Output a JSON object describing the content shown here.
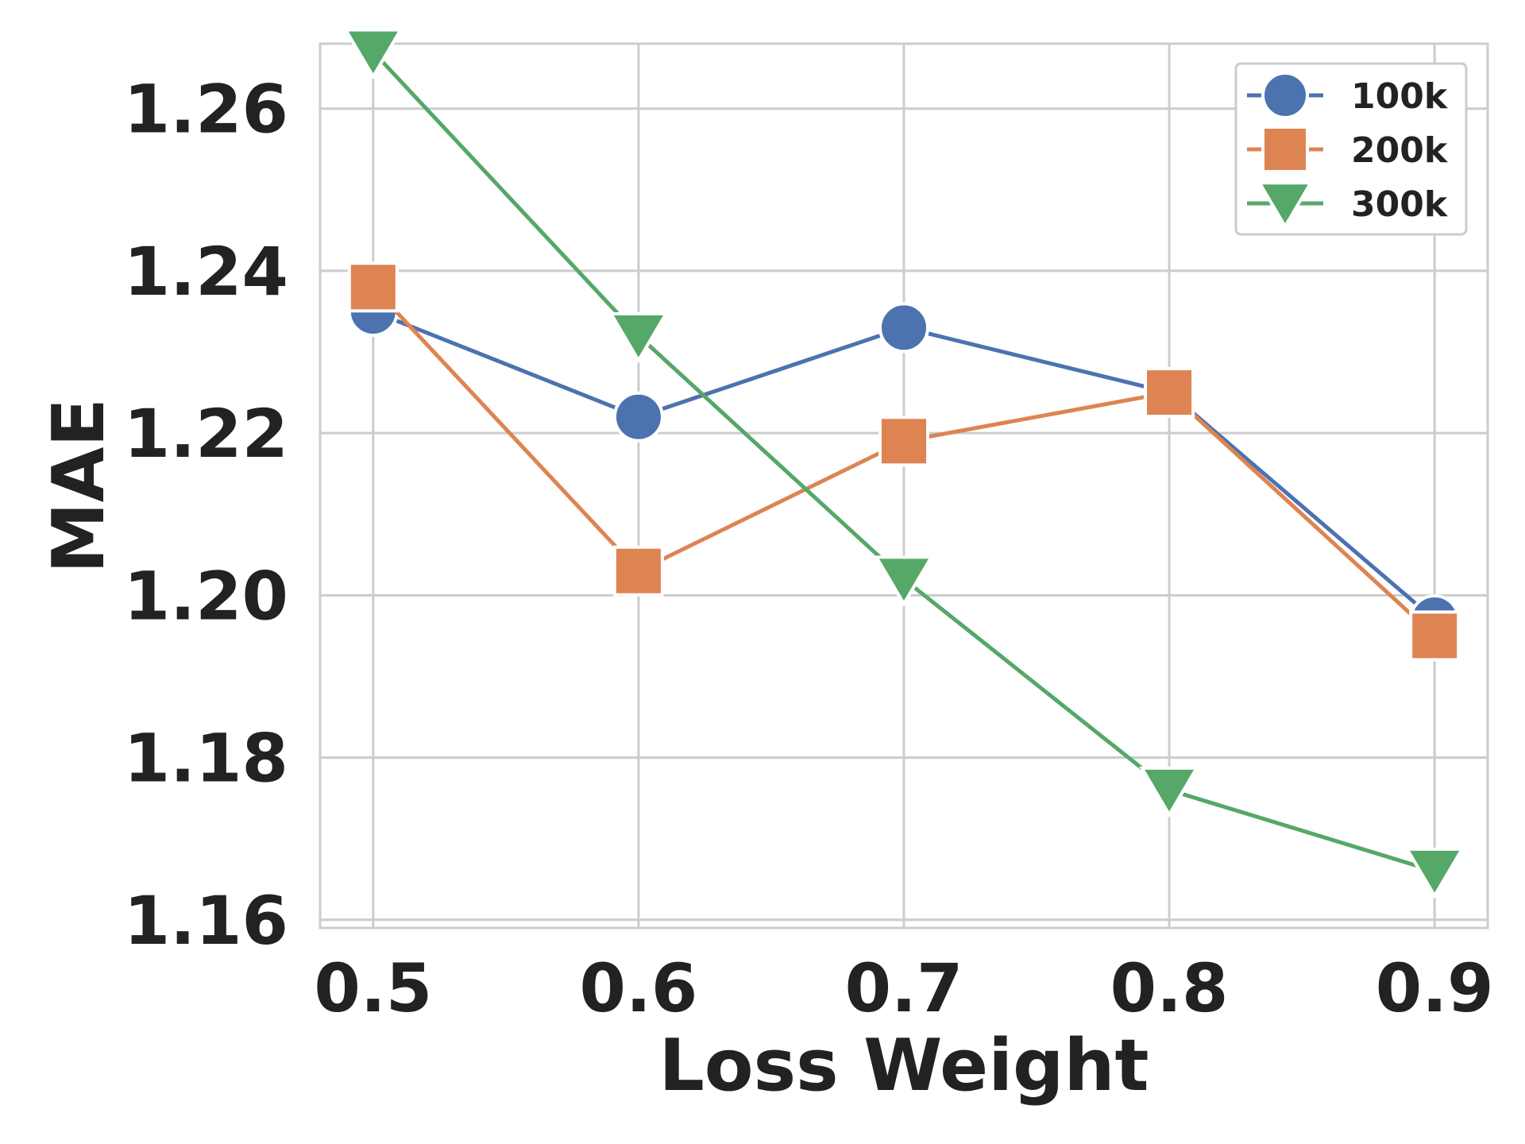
{
  "chart_data": {
    "type": "line",
    "title": "",
    "xlabel": "Loss Weight",
    "ylabel": "MAE",
    "x": [
      0.5,
      0.6,
      0.7,
      0.8,
      0.9
    ],
    "x_tick_labels": [
      "0.5",
      "0.6",
      "0.7",
      "0.8",
      "0.9"
    ],
    "y_tick_values": [
      1.16,
      1.18,
      1.2,
      1.22,
      1.24,
      1.26
    ],
    "y_tick_labels": [
      "1.16",
      "1.18",
      "1.20",
      "1.22",
      "1.24",
      "1.26"
    ],
    "xlim": [
      0.48,
      0.92
    ],
    "ylim": [
      1.159,
      1.268
    ],
    "grid": true,
    "legend_position": "top-right",
    "series": [
      {
        "name": "100k",
        "marker": "circle",
        "color": "#4c72b0",
        "values": [
          1.235,
          1.222,
          1.233,
          1.225,
          1.197
        ]
      },
      {
        "name": "200k",
        "marker": "square",
        "color": "#dd8452",
        "values": [
          1.238,
          1.203,
          1.219,
          1.225,
          1.195
        ]
      },
      {
        "name": "300k",
        "marker": "triangle-down",
        "color": "#55a868",
        "values": [
          1.267,
          1.232,
          1.202,
          1.176,
          1.166
        ]
      }
    ]
  }
}
